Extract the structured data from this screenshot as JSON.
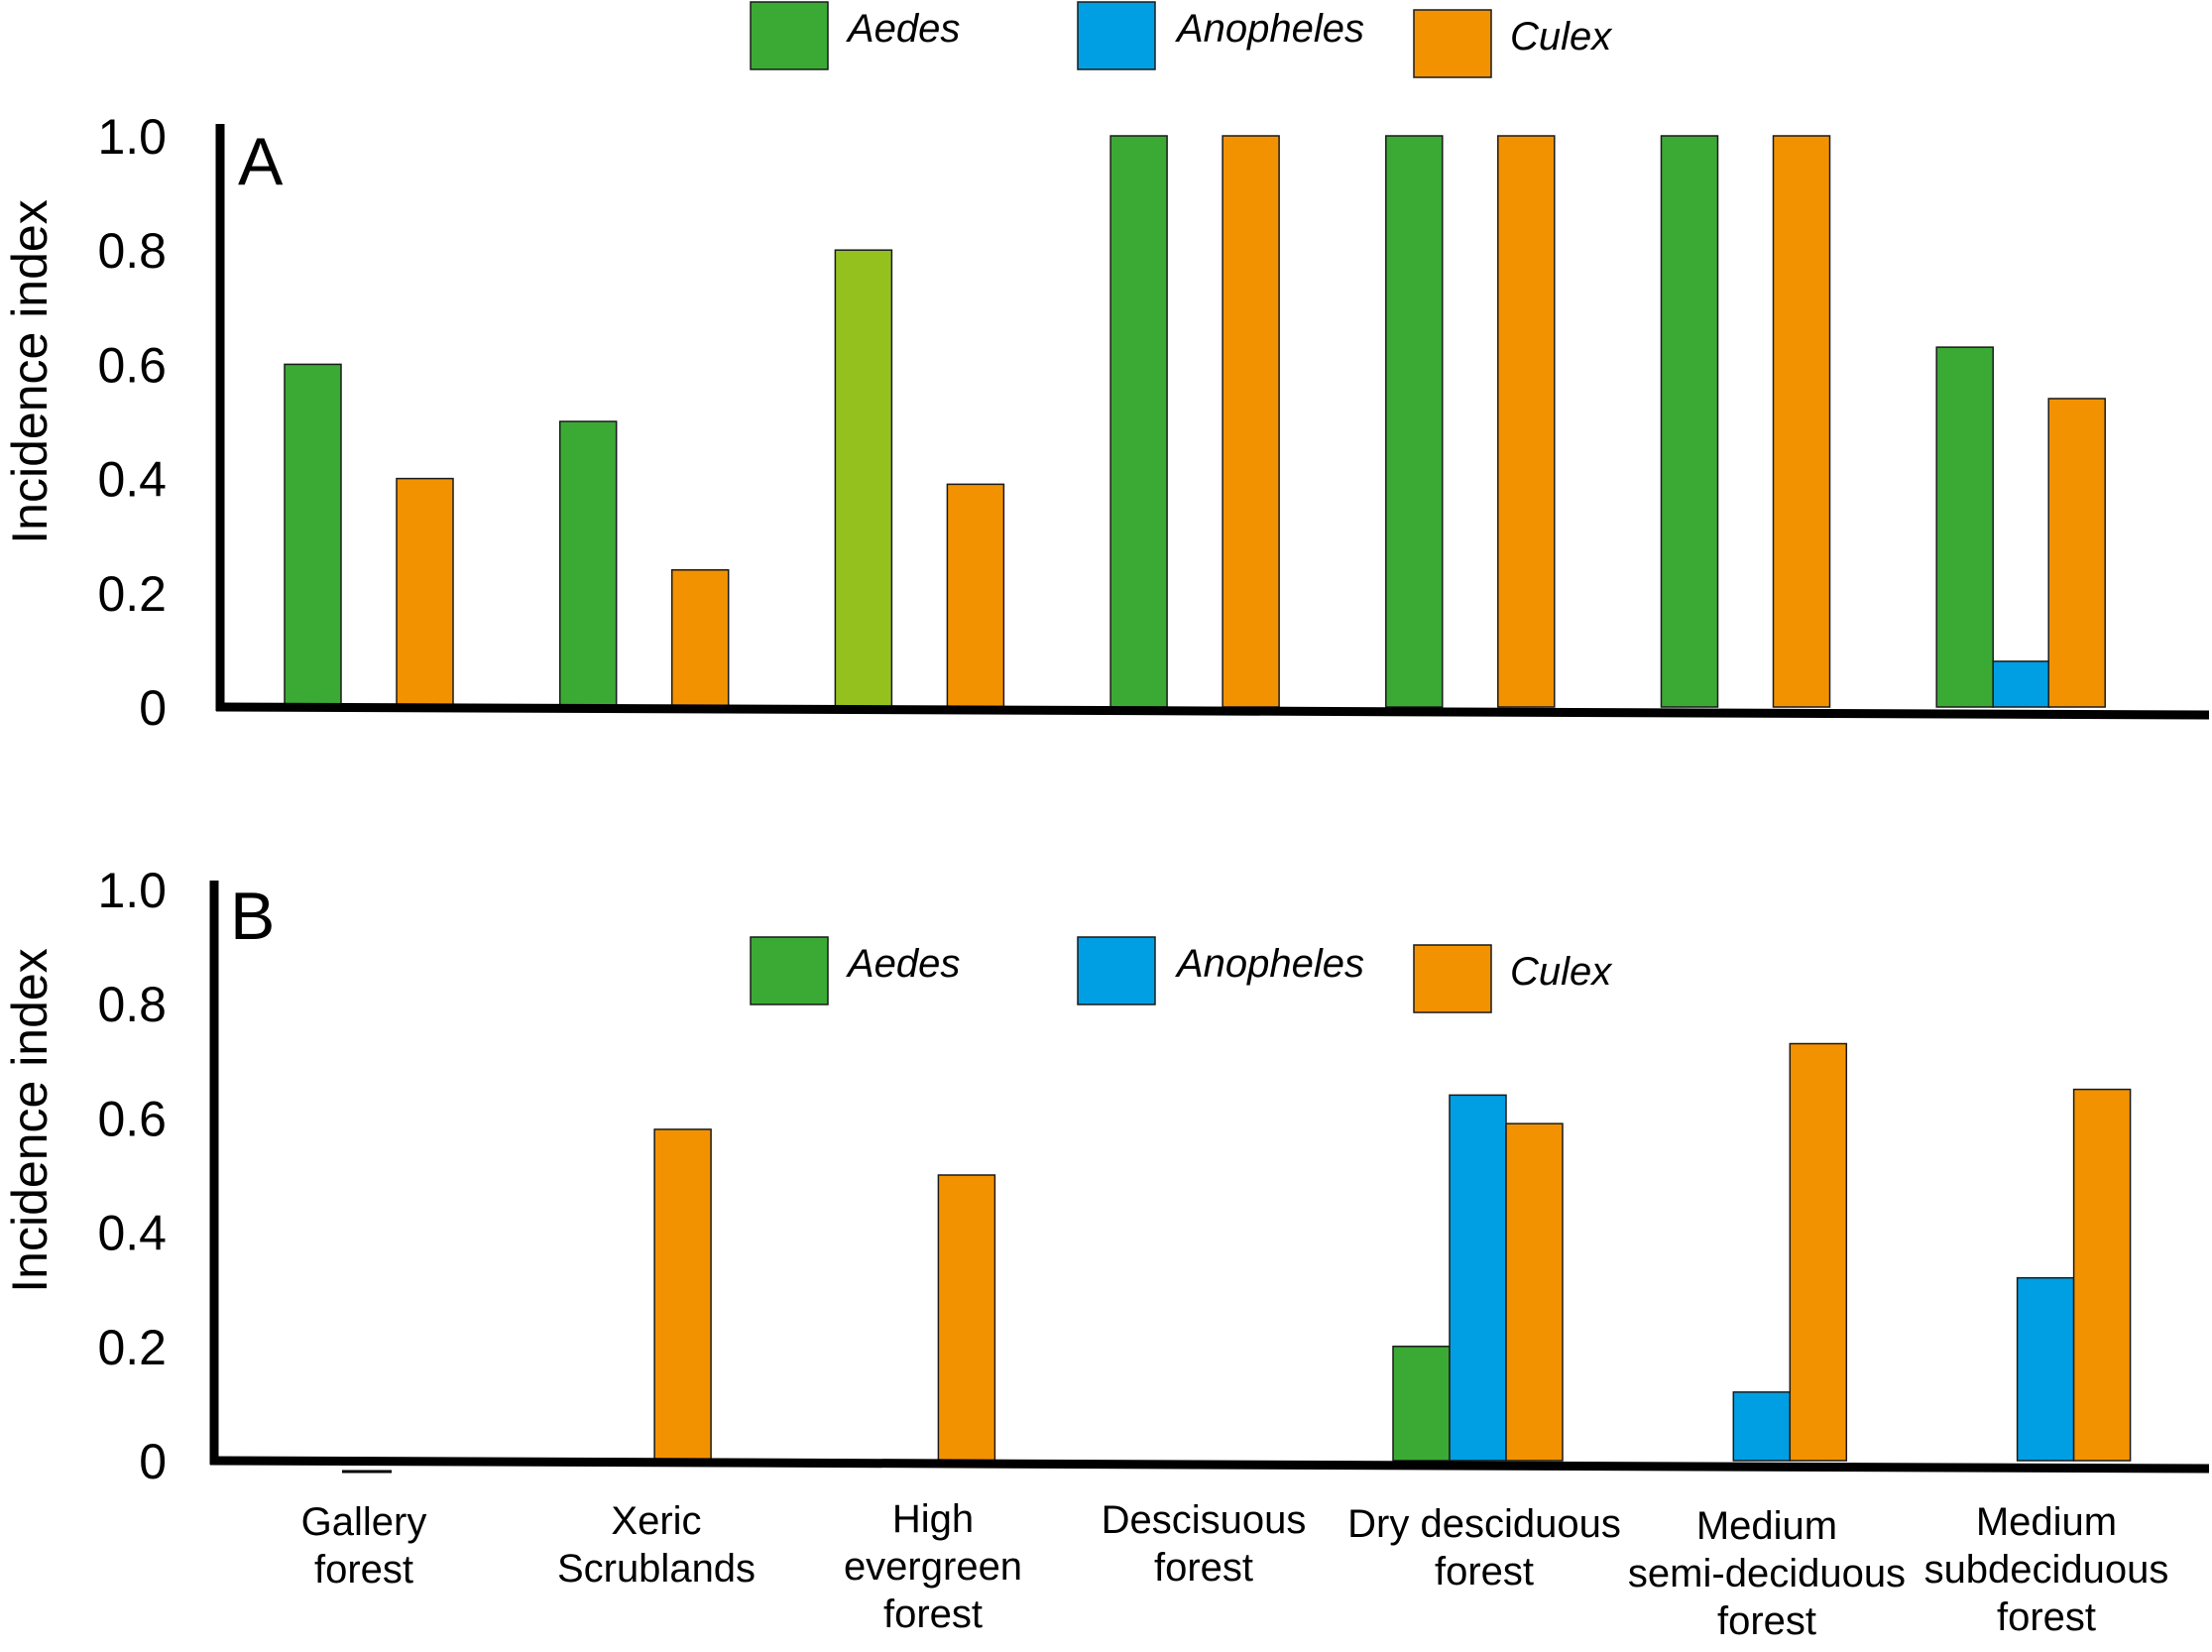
{
  "colors": {
    "Aedes": "#3aaa35",
    "Anopheles": "#009fe3",
    "Culex": "#f39200",
    "Aedes_highlight": "#95c11f"
  },
  "chart_data": [
    {
      "type": "bar",
      "panel_label": "A",
      "ylabel": "Incidence index",
      "ylim": [
        0,
        1.0
      ],
      "yticks": [
        "0",
        "0.2",
        "0.4",
        "0.6",
        "0.8",
        "1.0"
      ],
      "legend": {
        "placement": "top-center",
        "entries": [
          "Aedes",
          "Anopheles",
          "Culex"
        ]
      },
      "categories": [
        "Gallery forest",
        "Xeric Scrublands",
        "High evergreen forest",
        "Descisuous forest",
        "Dry desciduous forest",
        "Medium semi-deciduous forest",
        "Medium subdeciduous forest"
      ],
      "series": [
        {
          "name": "Aedes",
          "values": [
            0.6,
            0.5,
            0.8,
            1.0,
            1.0,
            1.0,
            0.63
          ]
        },
        {
          "name": "Anopheles",
          "values": [
            0,
            0,
            0,
            0,
            0,
            0,
            0.08
          ]
        },
        {
          "name": "Culex",
          "values": [
            0.4,
            0.24,
            0.39,
            1.0,
            1.0,
            1.0,
            0.54
          ]
        }
      ]
    },
    {
      "type": "bar",
      "panel_label": "B",
      "ylabel": "Incidence index",
      "ylim": [
        0,
        1.0
      ],
      "yticks": [
        "0",
        "0.2",
        "0.4",
        "0.6",
        "0.8",
        "1.0"
      ],
      "legend": {
        "placement": "top-center",
        "entries": [
          "Aedes",
          "Anopheles",
          "Culex"
        ]
      },
      "categories": [
        "Gallery forest",
        "Xeric Scrublands",
        "High evergreen forest",
        "Descisuous forest",
        "Dry desciduous forest",
        "Medium semi-deciduous forest",
        "Medium subdeciduous forest"
      ],
      "category_labels": [
        [
          "Gallery",
          "forest"
        ],
        [
          "Xeric",
          "Scrublands"
        ],
        [
          "High",
          "evergreen",
          "forest"
        ],
        [
          "Descisuous",
          "forest"
        ],
        [
          "Dry desciduous",
          "forest"
        ],
        [
          "Medium",
          "semi-deciduous",
          "forest"
        ],
        [
          "Medium",
          "subdeciduous",
          "forest"
        ]
      ],
      "series": [
        {
          "name": "Aedes",
          "values": [
            0,
            0,
            0,
            0,
            0.2,
            0,
            0
          ]
        },
        {
          "name": "Anopheles",
          "values": [
            0,
            0,
            0,
            0,
            0.64,
            0.12,
            0.32
          ]
        },
        {
          "name": "Culex",
          "values": [
            0,
            0.58,
            0.5,
            0,
            0.59,
            0.73,
            0.65
          ]
        }
      ]
    }
  ]
}
